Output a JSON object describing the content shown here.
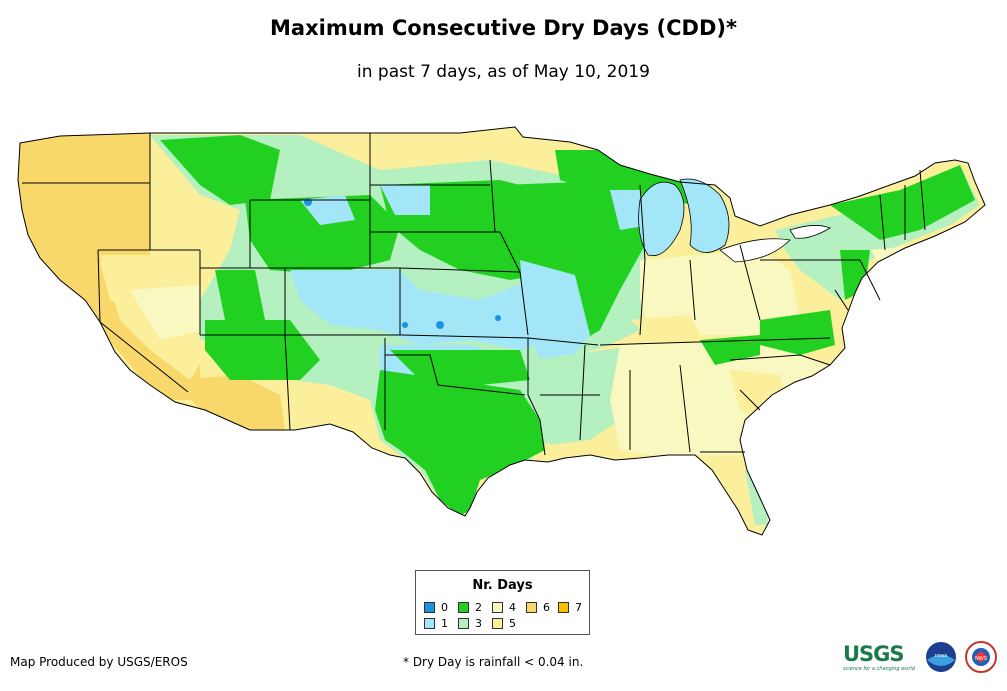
{
  "title": "Maximum Consecutive Dry Days (CDD)*",
  "subtitle": "in past 7 days, as of May 10, 2019",
  "legend": {
    "title": "Nr. Days",
    "items": [
      {
        "label": "0",
        "color": "#1a93e0"
      },
      {
        "label": "1",
        "color": "#a3e6f7"
      },
      {
        "label": "2",
        "color": "#22d022"
      },
      {
        "label": "3",
        "color": "#b5f0c0"
      },
      {
        "label": "4",
        "color": "#f8f8c0"
      },
      {
        "label": "5",
        "color": "#fbef9c"
      },
      {
        "label": "6",
        "color": "#f8d86a"
      },
      {
        "label": "7",
        "color": "#f8c000"
      }
    ]
  },
  "credit": "Map Produced by USGS/EROS",
  "footnote": "* Dry Day is rainfall < 0.04 in.",
  "logos": {
    "usgs": "USGS",
    "usgs_tagline": "science for a changing world",
    "noaa": "noaa",
    "nws": "NWS"
  },
  "colors": {
    "state_border": "#000000",
    "lake": "#a3e6f7"
  }
}
